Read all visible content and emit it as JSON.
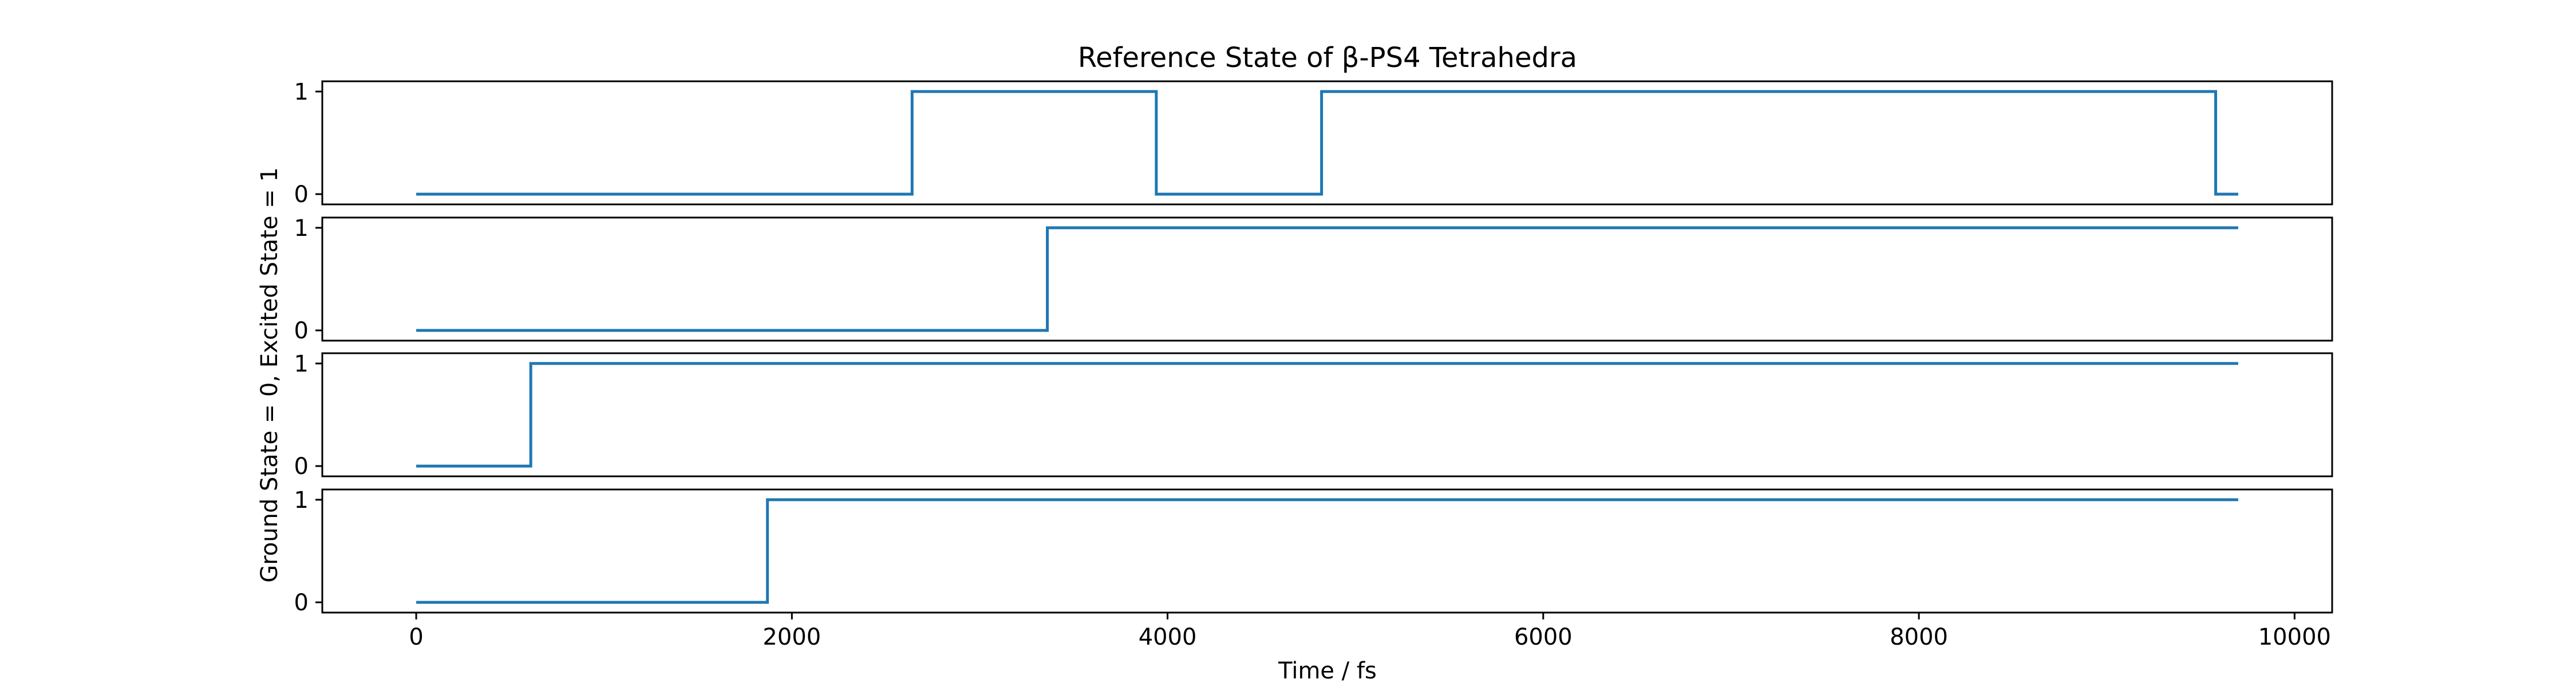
{
  "chart_data": {
    "type": "line",
    "title": "Reference State of β-PS4 Tetrahedra",
    "xlabel": "Time / fs",
    "ylabel": "Ground State = 0, Excited State = 1",
    "xlim": [
      -500,
      10200
    ],
    "ylim": [
      -0.1,
      1.1
    ],
    "xticks": [
      0,
      2000,
      4000,
      6000,
      8000,
      10000
    ],
    "xtick_labels": [
      "0",
      "2000",
      "4000",
      "6000",
      "8000",
      "10000"
    ],
    "yticks": [
      0,
      1
    ],
    "ytick_labels": [
      "0",
      "1"
    ],
    "grid": false,
    "legend": "none",
    "line_color": "#1f77b4",
    "panels": [
      {
        "x": [
          0,
          2640,
          2640,
          3940,
          3940,
          4820,
          4820,
          9580,
          9580,
          9700
        ],
        "y": [
          0,
          0,
          1,
          1,
          0,
          0,
          1,
          1,
          0,
          0
        ]
      },
      {
        "x": [
          0,
          3360,
          3360,
          9700
        ],
        "y": [
          0,
          0,
          1,
          1
        ]
      },
      {
        "x": [
          0,
          610,
          610,
          9700
        ],
        "y": [
          0,
          0,
          1,
          1
        ]
      },
      {
        "x": [
          0,
          1870,
          1870,
          9700
        ],
        "y": [
          0,
          0,
          1,
          1
        ]
      }
    ]
  }
}
